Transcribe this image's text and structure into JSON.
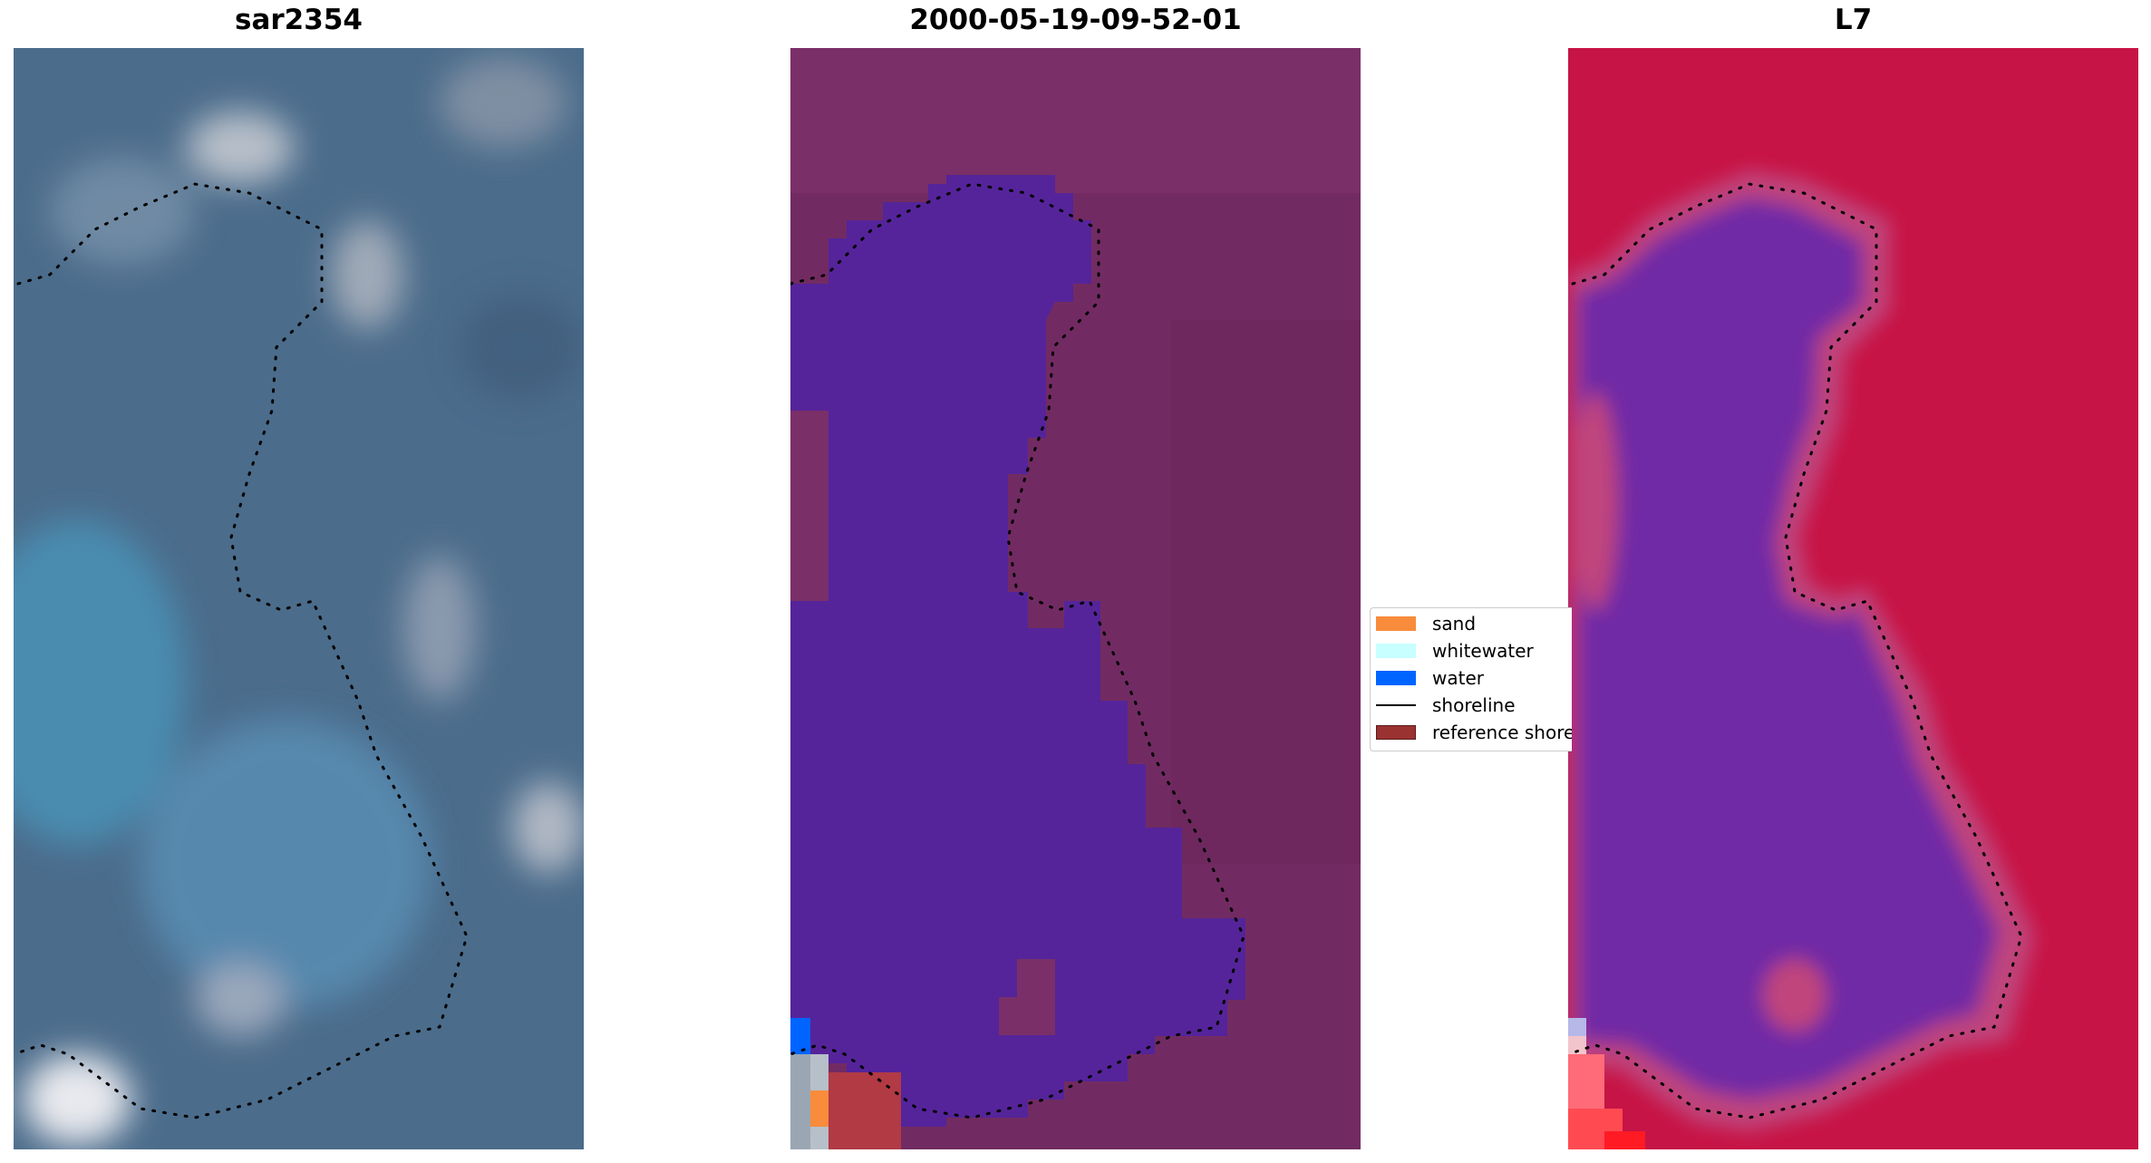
{
  "panels": [
    {
      "title": "sar2354",
      "kind": "rgb"
    },
    {
      "title": "2000-05-19-09-52-01",
      "kind": "classified"
    },
    {
      "title": "L7",
      "kind": "mndwi"
    }
  ],
  "legend": {
    "items": [
      {
        "label": "sand",
        "color": "#f88c3c",
        "type": "patch"
      },
      {
        "label": "whitewater",
        "color": "#c8ffff",
        "type": "patch"
      },
      {
        "label": "water",
        "color": "#0064ff",
        "type": "patch"
      },
      {
        "label": "shoreline",
        "color": "#000000",
        "type": "line"
      },
      {
        "label": "reference shoreline",
        "color": "#9b3232",
        "type": "patch"
      }
    ]
  },
  "colors": {
    "rgb_base": "#4a6e8e",
    "class_background": "#702a62",
    "class_water_overlay": "#55249a",
    "mndwi_land": "#c81446",
    "mndwi_water": "#7026a6",
    "shoreline_dots": "#000000"
  }
}
